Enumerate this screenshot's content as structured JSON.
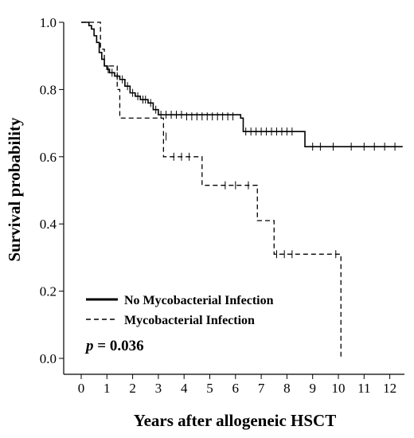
{
  "chart_data": {
    "type": "line",
    "subtype": "kaplan-meier",
    "xlabel": "Years after allogeneic HSCT",
    "ylabel": "Survival probability",
    "xlim": [
      0,
      12.5
    ],
    "ylim": [
      0,
      1.0
    ],
    "x_ticks": [
      "0",
      "1",
      "2",
      "3",
      "4",
      "5",
      "6",
      "7",
      "8",
      "9",
      "10",
      "11",
      "12"
    ],
    "y_ticks": [
      "0.0",
      "0.2",
      "0.4",
      "0.6",
      "0.8",
      "1.0"
    ],
    "grid": false,
    "legend_position": "bottom-left",
    "annotation": {
      "prefix": "p",
      "text": " = 0.036"
    },
    "series": [
      {
        "name": "No Mycobacterial Infection",
        "style": "solid",
        "steps": [
          [
            0,
            1.0
          ],
          [
            0.3,
            0.99
          ],
          [
            0.4,
            0.98
          ],
          [
            0.5,
            0.96
          ],
          [
            0.6,
            0.94
          ],
          [
            0.7,
            0.91
          ],
          [
            0.8,
            0.89
          ],
          [
            0.9,
            0.87
          ],
          [
            1.0,
            0.86
          ],
          [
            1.1,
            0.85
          ],
          [
            1.3,
            0.84
          ],
          [
            1.5,
            0.83
          ],
          [
            1.7,
            0.81
          ],
          [
            1.9,
            0.79
          ],
          [
            2.1,
            0.78
          ],
          [
            2.3,
            0.77
          ],
          [
            2.6,
            0.76
          ],
          [
            2.8,
            0.74
          ],
          [
            3.0,
            0.725
          ],
          [
            6.2,
            0.715
          ],
          [
            6.3,
            0.675
          ],
          [
            8.7,
            0.63
          ],
          [
            12.5,
            0.63
          ]
        ],
        "censored": [
          [
            1.05,
            0.86
          ],
          [
            1.2,
            0.85
          ],
          [
            1.4,
            0.84
          ],
          [
            1.6,
            0.83
          ],
          [
            1.8,
            0.81
          ],
          [
            2.0,
            0.79
          ],
          [
            2.2,
            0.78
          ],
          [
            2.4,
            0.77
          ],
          [
            2.5,
            0.77
          ],
          [
            2.7,
            0.76
          ],
          [
            2.9,
            0.74
          ],
          [
            3.1,
            0.725
          ],
          [
            3.3,
            0.725
          ],
          [
            3.5,
            0.725
          ],
          [
            3.7,
            0.725
          ],
          [
            3.9,
            0.725
          ],
          [
            4.1,
            0.72
          ],
          [
            4.3,
            0.72
          ],
          [
            4.5,
            0.72
          ],
          [
            4.7,
            0.72
          ],
          [
            4.9,
            0.72
          ],
          [
            5.1,
            0.72
          ],
          [
            5.3,
            0.72
          ],
          [
            5.5,
            0.72
          ],
          [
            5.7,
            0.72
          ],
          [
            5.9,
            0.72
          ],
          [
            6.4,
            0.675
          ],
          [
            6.6,
            0.675
          ],
          [
            6.8,
            0.675
          ],
          [
            7.0,
            0.675
          ],
          [
            7.2,
            0.675
          ],
          [
            7.4,
            0.675
          ],
          [
            7.6,
            0.675
          ],
          [
            7.8,
            0.675
          ],
          [
            8.0,
            0.675
          ],
          [
            8.2,
            0.675
          ],
          [
            9.0,
            0.63
          ],
          [
            9.3,
            0.63
          ],
          [
            9.8,
            0.63
          ],
          [
            10.5,
            0.63
          ],
          [
            11.0,
            0.63
          ],
          [
            11.4,
            0.63
          ],
          [
            11.8,
            0.63
          ],
          [
            12.2,
            0.63
          ]
        ]
      },
      {
        "name": "Mycobacterial Infection",
        "style": "dashed",
        "steps": [
          [
            0,
            1.0
          ],
          [
            0.6,
            1.0
          ],
          [
            0.75,
            0.92
          ],
          [
            0.9,
            0.87
          ],
          [
            1.2,
            0.87
          ],
          [
            1.4,
            0.8
          ],
          [
            1.5,
            0.715
          ],
          [
            3.0,
            0.715
          ],
          [
            3.2,
            0.6
          ],
          [
            4.6,
            0.6
          ],
          [
            4.7,
            0.515
          ],
          [
            6.8,
            0.515
          ],
          [
            6.85,
            0.41
          ],
          [
            7.4,
            0.41
          ],
          [
            7.5,
            0.31
          ],
          [
            10.1,
            0.31
          ],
          [
            10.1,
            0.0
          ]
        ],
        "censored": [
          [
            3.3,
            0.66
          ],
          [
            3.6,
            0.6
          ],
          [
            3.9,
            0.6
          ],
          [
            4.2,
            0.6
          ],
          [
            5.6,
            0.515
          ],
          [
            6.0,
            0.515
          ],
          [
            6.5,
            0.515
          ],
          [
            7.6,
            0.31
          ],
          [
            7.9,
            0.31
          ],
          [
            8.2,
            0.31
          ],
          [
            9.9,
            0.31
          ]
        ]
      }
    ]
  }
}
